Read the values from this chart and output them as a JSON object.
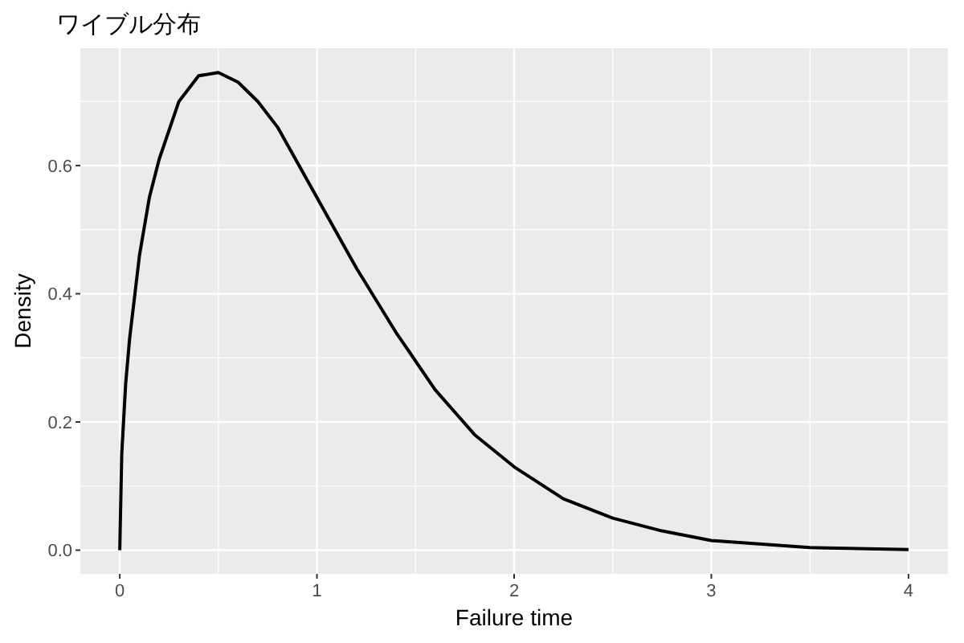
{
  "chart_data": {
    "type": "line",
    "title": "ワイブル分布",
    "xlabel": "Failure time",
    "ylabel": "Density",
    "x": [
      0,
      0.01,
      0.03,
      0.05,
      0.1,
      0.15,
      0.2,
      0.3,
      0.4,
      0.5,
      0.6,
      0.7,
      0.8,
      1.0,
      1.2,
      1.4,
      1.6,
      1.8,
      2.0,
      2.25,
      2.5,
      2.75,
      3.0,
      3.5,
      4.0
    ],
    "series": [
      {
        "color": "#000000",
        "values": [
          0,
          0.15,
          0.26,
          0.33,
          0.46,
          0.55,
          0.61,
          0.7,
          0.74,
          0.745,
          0.73,
          0.7,
          0.66,
          0.55,
          0.44,
          0.34,
          0.25,
          0.18,
          0.13,
          0.08,
          0.05,
          0.03,
          0.015,
          0.004,
          0.001
        ]
      }
    ],
    "xlim": [
      -0.2,
      4.2
    ],
    "ylim": [
      -0.037,
      0.783
    ],
    "xticks": [
      0,
      1,
      2,
      3,
      4
    ],
    "yticks": [
      {
        "value": 0,
        "label": "0.0"
      },
      0.2,
      0.4,
      0.6
    ],
    "grid": true,
    "line_style": "solid",
    "marker": "none"
  }
}
